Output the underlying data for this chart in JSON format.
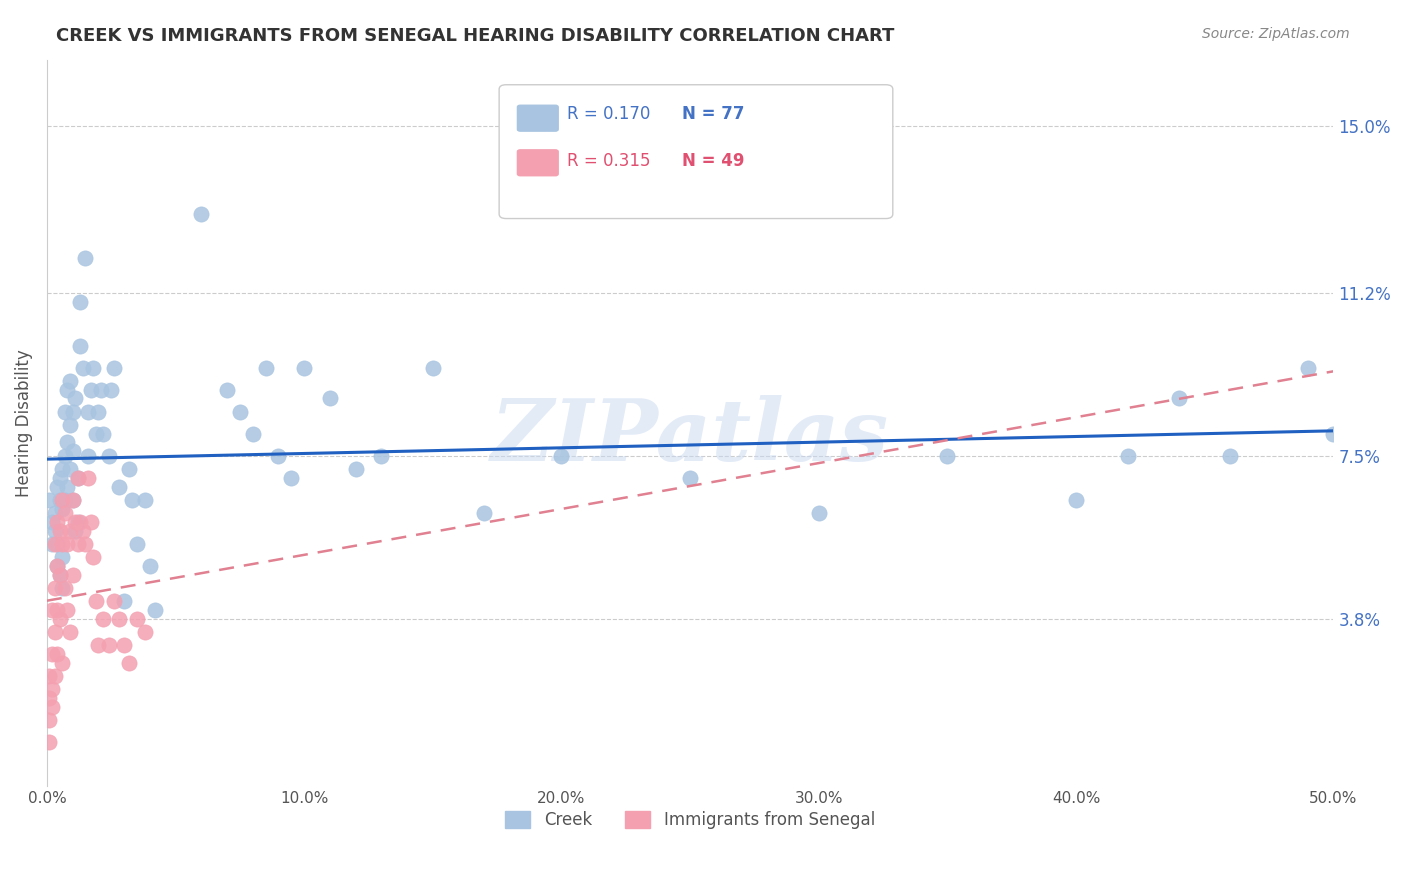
{
  "title": "CREEK VS IMMIGRANTS FROM SENEGAL HEARING DISABILITY CORRELATION CHART",
  "source": "Source: ZipAtlas.com",
  "xlabel": "",
  "ylabel": "Hearing Disability",
  "xlim": [
    0.0,
    0.5
  ],
  "ylim": [
    0.0,
    0.165
  ],
  "yticks": [
    0.038,
    0.075,
    0.112,
    0.15
  ],
  "ytick_labels": [
    "3.8%",
    "7.5%",
    "11.2%",
    "15.0%"
  ],
  "xticks": [
    0.0,
    0.1,
    0.2,
    0.3,
    0.4,
    0.5
  ],
  "xtick_labels": [
    "0.0%",
    "10.0%",
    "20.0%",
    "30.0%",
    "40.0%",
    "50.0%"
  ],
  "creek_color": "#a8c4e0",
  "senegal_color": "#f4a0b0",
  "creek_line_color": "#2060c0",
  "senegal_line_color": "#e08090",
  "watermark": "ZIPatlas",
  "watermark_color": "#c8d8f0",
  "legend_r1": "R = 0.170",
  "legend_n1": "N = 77",
  "legend_r2": "R = 0.315",
  "legend_n2": "N = 49",
  "creek_label": "Creek",
  "senegal_label": "Immigrants from Senegal",
  "creek_scatter_x": [
    0.001,
    0.002,
    0.002,
    0.003,
    0.003,
    0.004,
    0.004,
    0.004,
    0.005,
    0.005,
    0.005,
    0.006,
    0.006,
    0.006,
    0.006,
    0.007,
    0.007,
    0.007,
    0.008,
    0.008,
    0.008,
    0.009,
    0.009,
    0.009,
    0.01,
    0.01,
    0.01,
    0.011,
    0.011,
    0.012,
    0.012,
    0.013,
    0.013,
    0.014,
    0.015,
    0.016,
    0.016,
    0.017,
    0.018,
    0.019,
    0.02,
    0.021,
    0.022,
    0.024,
    0.025,
    0.026,
    0.028,
    0.03,
    0.032,
    0.033,
    0.035,
    0.038,
    0.04,
    0.042,
    0.06,
    0.07,
    0.075,
    0.08,
    0.085,
    0.09,
    0.095,
    0.1,
    0.11,
    0.12,
    0.13,
    0.15,
    0.17,
    0.2,
    0.25,
    0.3,
    0.35,
    0.4,
    0.42,
    0.44,
    0.46,
    0.49,
    0.5
  ],
  "creek_scatter_y": [
    0.065,
    0.06,
    0.055,
    0.062,
    0.058,
    0.05,
    0.068,
    0.055,
    0.048,
    0.07,
    0.065,
    0.072,
    0.063,
    0.052,
    0.045,
    0.085,
    0.075,
    0.065,
    0.09,
    0.078,
    0.068,
    0.092,
    0.082,
    0.072,
    0.085,
    0.076,
    0.065,
    0.088,
    0.058,
    0.07,
    0.06,
    0.11,
    0.1,
    0.095,
    0.12,
    0.085,
    0.075,
    0.09,
    0.095,
    0.08,
    0.085,
    0.09,
    0.08,
    0.075,
    0.09,
    0.095,
    0.068,
    0.042,
    0.072,
    0.065,
    0.055,
    0.065,
    0.05,
    0.04,
    0.13,
    0.09,
    0.085,
    0.08,
    0.095,
    0.075,
    0.07,
    0.095,
    0.088,
    0.072,
    0.075,
    0.095,
    0.062,
    0.075,
    0.07,
    0.062,
    0.075,
    0.065,
    0.075,
    0.088,
    0.075,
    0.095,
    0.08
  ],
  "senegal_scatter_x": [
    0.001,
    0.001,
    0.001,
    0.001,
    0.002,
    0.002,
    0.002,
    0.002,
    0.003,
    0.003,
    0.003,
    0.003,
    0.004,
    0.004,
    0.004,
    0.004,
    0.005,
    0.005,
    0.005,
    0.006,
    0.006,
    0.006,
    0.007,
    0.007,
    0.008,
    0.008,
    0.009,
    0.009,
    0.01,
    0.01,
    0.011,
    0.012,
    0.012,
    0.013,
    0.014,
    0.015,
    0.016,
    0.017,
    0.018,
    0.019,
    0.02,
    0.022,
    0.024,
    0.026,
    0.028,
    0.03,
    0.032,
    0.035,
    0.038
  ],
  "senegal_scatter_y": [
    0.01,
    0.025,
    0.02,
    0.015,
    0.03,
    0.022,
    0.04,
    0.018,
    0.045,
    0.055,
    0.035,
    0.025,
    0.06,
    0.05,
    0.04,
    0.03,
    0.058,
    0.048,
    0.038,
    0.065,
    0.055,
    0.028,
    0.062,
    0.045,
    0.055,
    0.04,
    0.058,
    0.035,
    0.065,
    0.048,
    0.06,
    0.07,
    0.055,
    0.06,
    0.058,
    0.055,
    0.07,
    0.06,
    0.052,
    0.042,
    0.032,
    0.038,
    0.032,
    0.042,
    0.038,
    0.032,
    0.028,
    0.038,
    0.035
  ]
}
